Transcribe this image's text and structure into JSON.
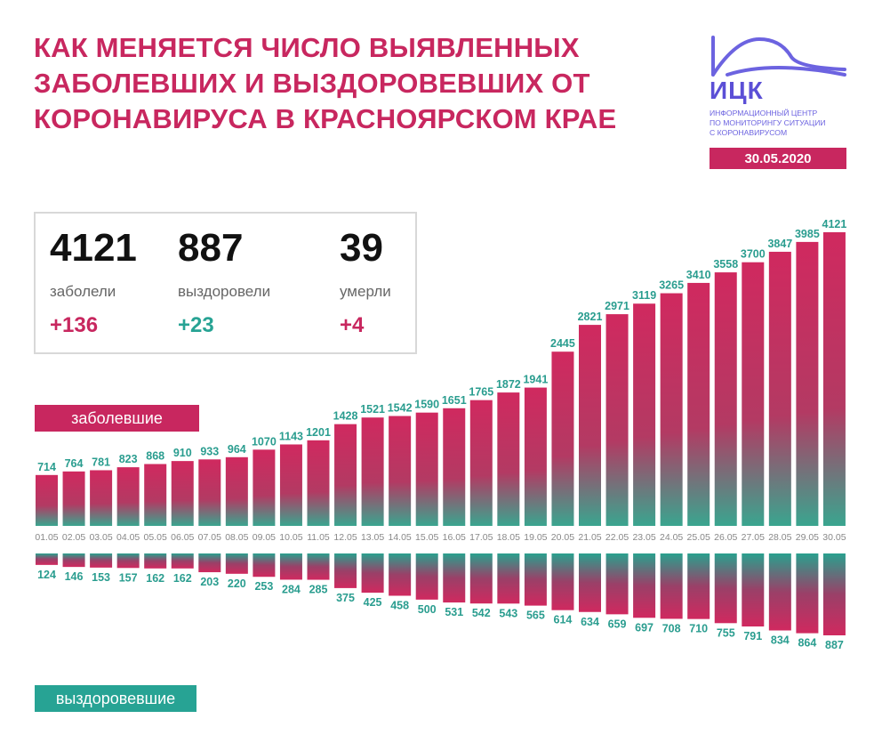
{
  "title": {
    "line1": "Как меняется число выявленных",
    "line2": "заболевших и выздоровевших от",
    "line3": "коронавируса в Красноярском крае"
  },
  "logo": {
    "name": "ИЦК",
    "sub1": "информационный центр",
    "sub2": "по мониторингу ситуации",
    "sub3": "с коронавирусом",
    "date": "30.05.2020"
  },
  "stats": {
    "sick": {
      "value": "4121",
      "label": "заболели",
      "delta": "+136"
    },
    "recovered": {
      "value": "887",
      "label": "выздоровели",
      "delta": "+23"
    },
    "dead": {
      "value": "39",
      "label": "умерли",
      "delta": "+4"
    }
  },
  "legend": {
    "sick": "заболевшие",
    "recovered": "выздоровевшие"
  },
  "colors": {
    "accent": "#c8275f",
    "teal": "#27a394",
    "label": "#2a9d8f"
  },
  "chart_data": {
    "type": "bar",
    "categories": [
      "01.05",
      "02.05",
      "03.05",
      "04.05",
      "05.05",
      "06.05",
      "07.05",
      "08.05",
      "09.05",
      "10.05",
      "11.05",
      "12.05",
      "13.05",
      "14.05",
      "15.05",
      "16.05",
      "17.05",
      "18.05",
      "19.05",
      "20.05",
      "21.05",
      "22.05",
      "23.05",
      "24.05",
      "25.05",
      "26.05",
      "27.05",
      "28.05",
      "29.05",
      "30.05"
    ],
    "series": [
      {
        "name": "заболевшие",
        "values": [
          714,
          764,
          781,
          823,
          868,
          910,
          933,
          964,
          1070,
          1143,
          1201,
          1428,
          1521,
          1542,
          1590,
          1651,
          1765,
          1872,
          1941,
          2445,
          2821,
          2971,
          3119,
          3265,
          3410,
          3558,
          3700,
          3847,
          3985,
          4121
        ]
      },
      {
        "name": "выздоровевшие",
        "values": [
          124,
          146,
          153,
          157,
          162,
          162,
          203,
          220,
          253,
          284,
          285,
          375,
          425,
          458,
          500,
          531,
          542,
          543,
          565,
          614,
          634,
          659,
          697,
          708,
          710,
          755,
          791,
          834,
          864,
          887
        ]
      }
    ]
  }
}
